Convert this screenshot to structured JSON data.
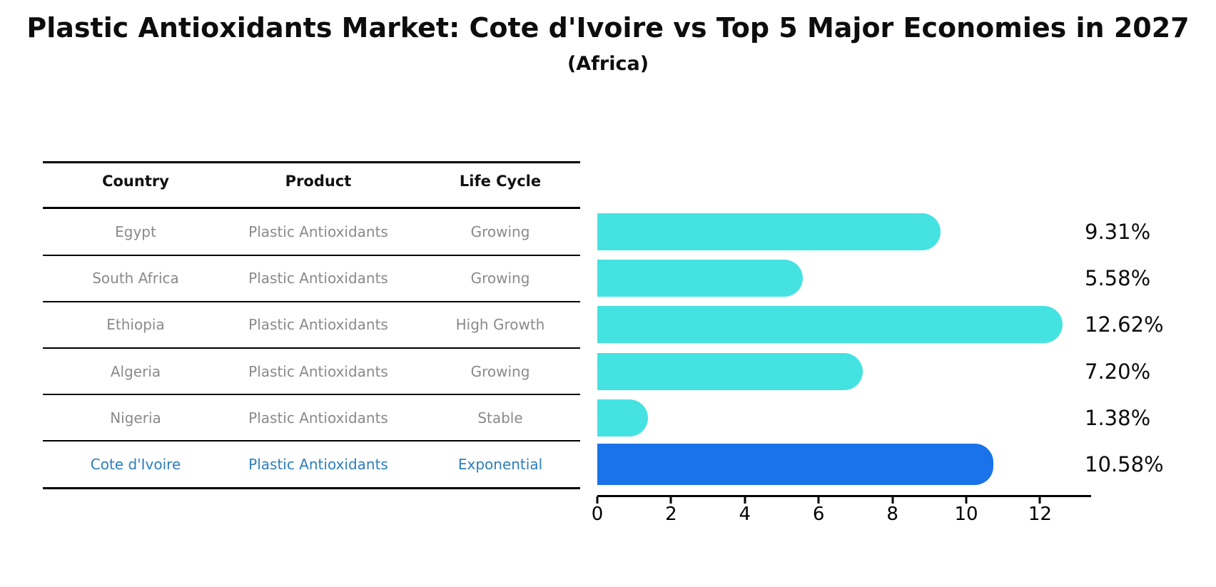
{
  "title": "Plastic Antioxidants Market: Cote d'Ivoire vs Top 5 Major Economies in 2027",
  "subtitle": "(Africa)",
  "table": {
    "headers": [
      "Country",
      "Product",
      "Life Cycle"
    ],
    "rows": [
      {
        "country": "Egypt",
        "product": "Plastic Antioxidants",
        "life_cycle": "Growing",
        "highlight": false
      },
      {
        "country": "South Africa",
        "product": "Plastic Antioxidants",
        "life_cycle": "Growing",
        "highlight": false
      },
      {
        "country": "Ethiopia",
        "product": "Plastic Antioxidants",
        "life_cycle": "High Growth",
        "highlight": false
      },
      {
        "country": "Algeria",
        "product": "Plastic Antioxidants",
        "life_cycle": "Growing",
        "highlight": false
      },
      {
        "country": "Nigeria",
        "product": "Plastic Antioxidants",
        "life_cycle": "Stable",
        "highlight": false
      },
      {
        "country": "Cote d'Ivoire",
        "product": "Plastic Antioxidants",
        "life_cycle": "Exponential",
        "highlight": true
      }
    ]
  },
  "chart_data": {
    "type": "bar",
    "orientation": "horizontal",
    "title": "Plastic Antioxidants Market: Cote d'Ivoire vs Top 5 Major Economies in 2027",
    "subtitle": "(Africa)",
    "categories": [
      "Egypt",
      "South Africa",
      "Ethiopia",
      "Algeria",
      "Nigeria",
      "Cote d'Ivoire"
    ],
    "values": [
      9.31,
      5.58,
      12.62,
      7.2,
      1.38,
      10.58
    ],
    "value_labels": [
      "9.31%",
      "5.58%",
      "12.62%",
      "7.20%",
      "1.38%",
      "10.58%"
    ],
    "xlabel": "",
    "ylabel": "",
    "xticks": [
      0,
      2,
      4,
      6,
      8,
      10,
      12
    ],
    "xlim": [
      0,
      13.35
    ],
    "grid": false,
    "legend": false,
    "bar_color": "#45E2E2",
    "highlight_bar_color": "#1A73E8",
    "highlight_index": 5,
    "row_text_color": "#8a8a8a",
    "highlight_text_color": "#2d7ebd"
  }
}
